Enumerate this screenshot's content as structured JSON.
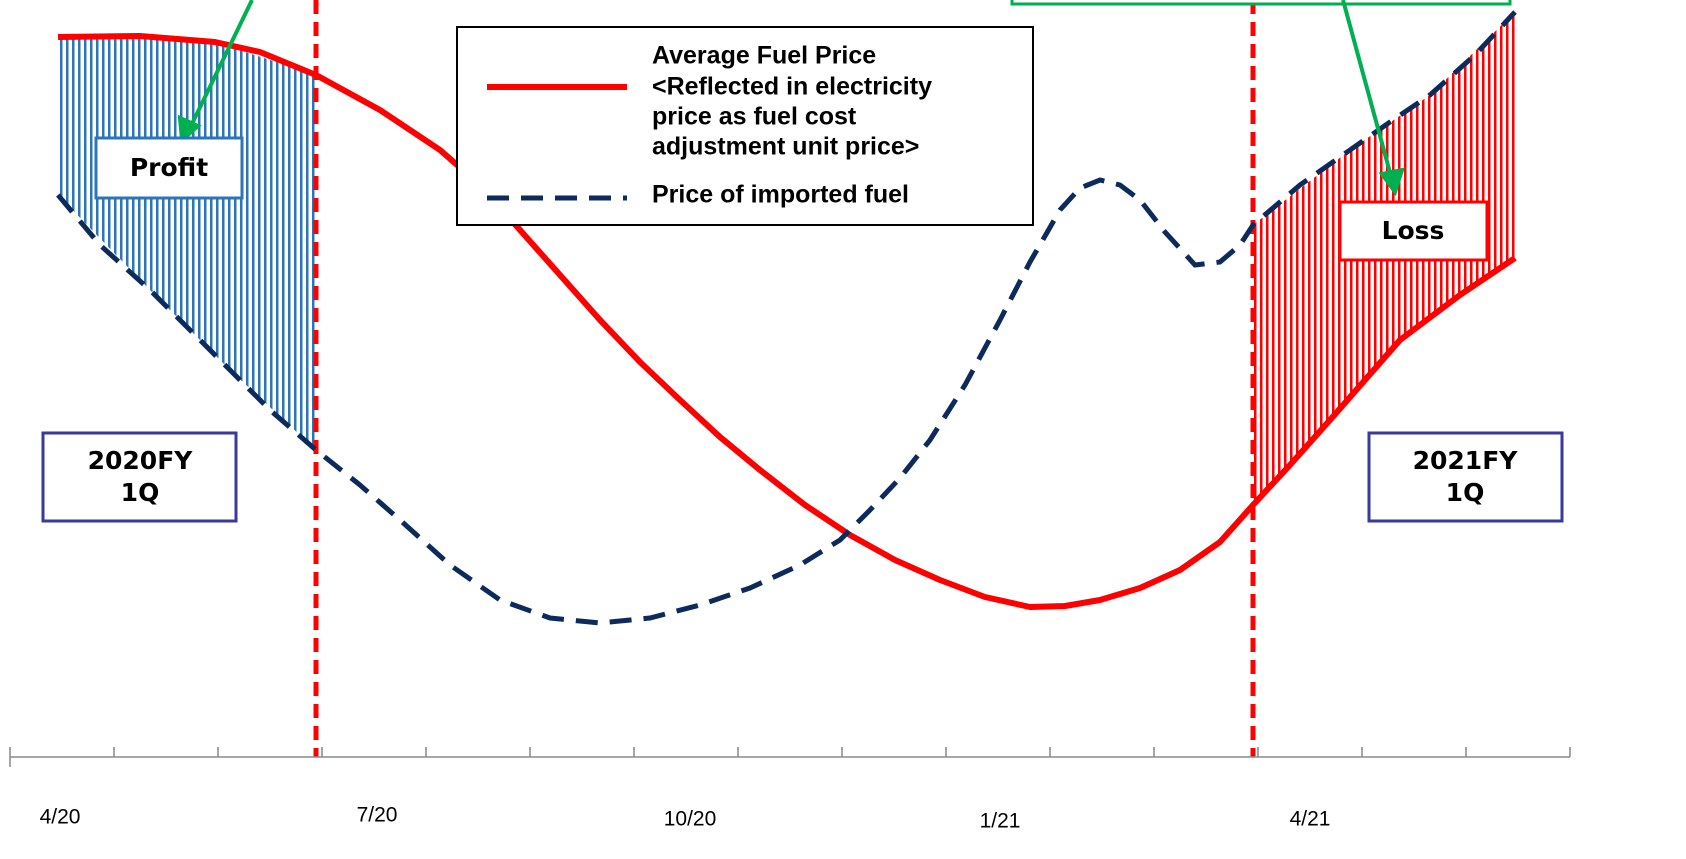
{
  "legend": {
    "items": [
      {
        "label": [
          "Average Fuel Price",
          "<Reflected in electricity",
          "price as fuel cost",
          "adjustment unit price>"
        ]
      },
      {
        "label": [
          "Price of imported fuel"
        ]
      }
    ]
  },
  "boxes": {
    "profit": "Profit",
    "loss": "Loss",
    "left_period": [
      "2020FY",
      "1Q"
    ],
    "right_period": [
      "2021FY",
      "1Q"
    ]
  },
  "x_axis": {
    "labels": [
      "4/20",
      "7/20",
      "10/20",
      "1/21",
      "4/21"
    ]
  }
}
